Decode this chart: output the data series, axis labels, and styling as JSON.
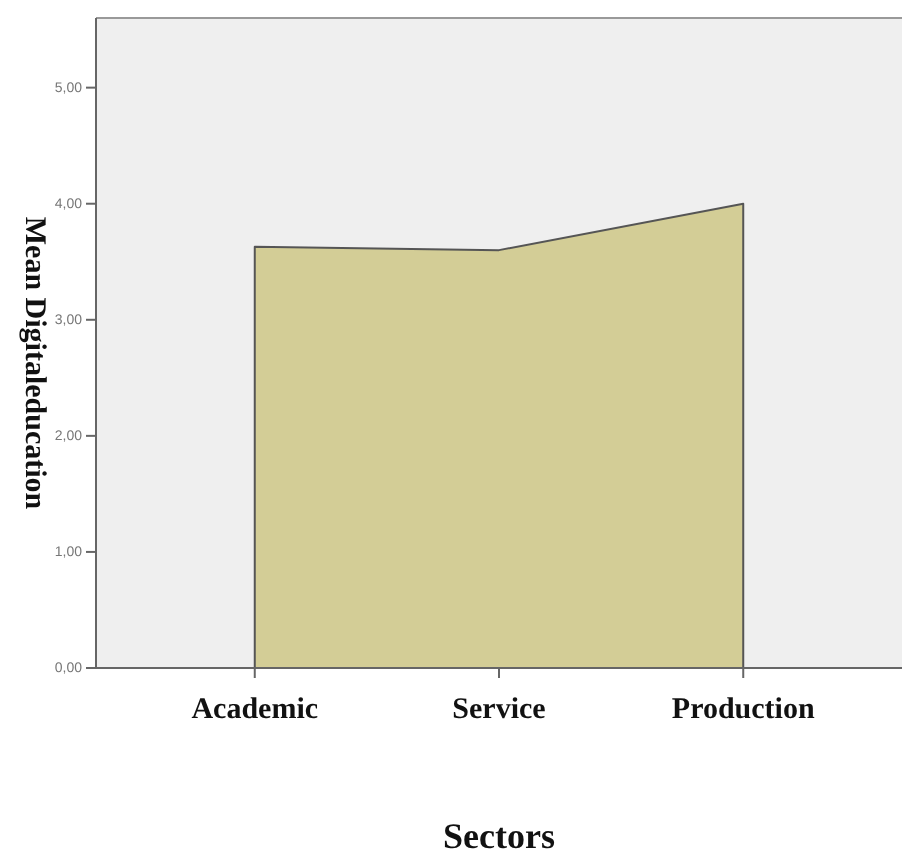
{
  "chart_data": {
    "type": "area",
    "xlabel": "Sectors",
    "ylabel": "Mean Digitaleducation",
    "categories": [
      "Academic",
      "Service",
      "Production"
    ],
    "values": [
      3.63,
      3.6,
      4.0
    ],
    "color": "#d3cd96",
    "ylim": [
      0,
      5.6
    ],
    "yticks": [
      {
        "value": 0,
        "label": "0,00"
      },
      {
        "value": 1,
        "label": "1,00"
      },
      {
        "value": 2,
        "label": "2,00"
      },
      {
        "value": 3,
        "label": "3,00"
      },
      {
        "value": 4,
        "label": "4,00"
      },
      {
        "value": 5,
        "label": "5,00"
      }
    ],
    "grid": false
  }
}
